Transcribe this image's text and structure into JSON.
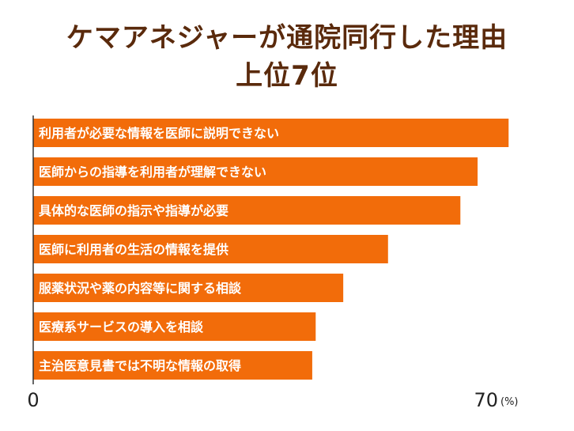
{
  "title": {
    "line1": "ケマアネジャーが通院同行した理由",
    "line2": "上位7位"
  },
  "chart_data": {
    "type": "bar",
    "orientation": "horizontal",
    "title": "ケマアネジャーが通院同行した理由 上位7位",
    "categories": [
      "利用者が必要な情報を医師に説明できない",
      "医師からの指導を利用者が理解できない",
      "具体的な医師の指示や指導が必要",
      "医師に利用者の生活の情報を提供",
      "服薬状況や薬の内容等に関する相談",
      "医療系サービスの導入を相談",
      "主治医意見書では不明な情報の取得"
    ],
    "values": [
      69,
      64.5,
      62,
      51.5,
      45,
      41,
      40.5
    ],
    "xlim": [
      0,
      70
    ],
    "x_ticks": [
      "0",
      "70"
    ],
    "unit": "(%)",
    "grid": false,
    "bar_color": "#f26c0a"
  }
}
